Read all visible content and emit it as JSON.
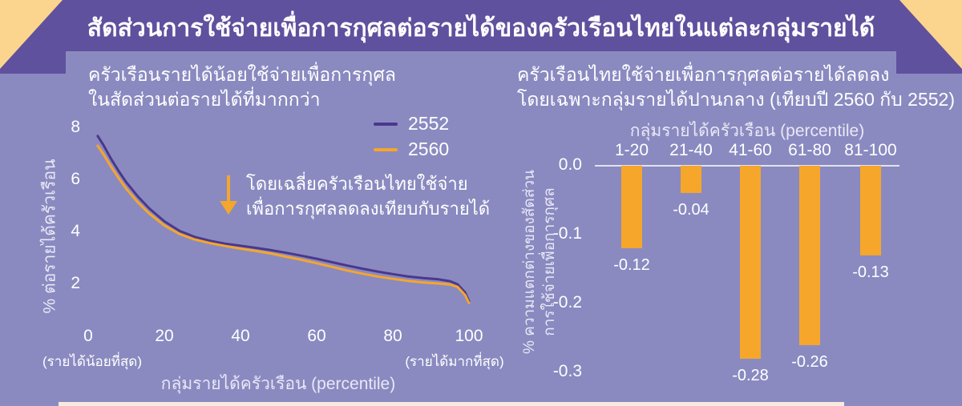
{
  "page": {
    "title": "สัดส่วนการใช้จ่ายเพื่อการกุศลต่อรายได้ของครัวเรือนไทยในแต่ละกลุ่มรายได้",
    "colors": {
      "background": "#8A8AC1",
      "header_band": "#5F519E",
      "corner_triangle": "#FBD58D",
      "accent_orange": "#F5A62B",
      "line_2552_purple": "#4A388C",
      "text_white": "#FFFFFF",
      "zero_line": "#E3E1EF",
      "footer_strip": "#F8EADF"
    }
  },
  "left_chart": {
    "subtitle_line1": "ครัวเรือนรายได้น้อยใช้จ่ายเพื่อการกุศล",
    "subtitle_line2": "ในสัดส่วนต่อรายได้ที่มากกว่า",
    "annotation_line1": "โดยเฉลี่ยครัวเรือนไทยใช้จ่าย",
    "annotation_line2": "เพื่อการกุศลลดลงเทียบกับรายได้",
    "x_min_note": "(รายได้น้อยที่สุด)",
    "x_max_note": "(รายได้มากที่สุด)"
  },
  "right_chart": {
    "subtitle_line1": "ครัวเรือนไทยใช้จ่ายเพื่อการกุศลต่อรายได้ลดลง",
    "subtitle_line2": "โดยเฉพาะกลุ่มรายได้ปานกลาง (เทียบปี 2560 กับ 2552)",
    "ylabel_line1": "% ความแตกต่างของสัดส่วน",
    "ylabel_line2": "การใช้จ่ายเพื่อการกุศล"
  },
  "chart_data": [
    {
      "type": "line",
      "title": "ครัวเรือนรายได้น้อยใช้จ่ายเพื่อการกุศลในสัดส่วนต่อรายได้ที่มากกว่า",
      "xlabel": "กลุ่มรายได้ครัวเรือน (percentile)",
      "ylabel": "% ต่อรายได้ครัวเรือน",
      "x_ticks": [
        0,
        20,
        40,
        60,
        80,
        100
      ],
      "y_ticks": [
        8,
        6,
        4,
        2
      ],
      "xlim": [
        0,
        105
      ],
      "ylim": [
        0,
        8.5
      ],
      "grid": false,
      "legend_position": "top-right",
      "x": [
        2.5,
        4,
        6,
        8,
        10,
        13,
        16,
        20,
        24,
        28,
        32,
        36,
        40,
        44,
        48,
        52,
        56,
        60,
        64,
        68,
        72,
        76,
        80,
        84,
        88,
        92,
        95,
        97,
        99,
        100
      ],
      "series": [
        {
          "name": "2552",
          "color": "#4A388C",
          "values": [
            7.7,
            7.35,
            6.82,
            6.35,
            5.92,
            5.38,
            4.92,
            4.42,
            4.05,
            3.82,
            3.67,
            3.56,
            3.48,
            3.4,
            3.31,
            3.21,
            3.1,
            2.98,
            2.85,
            2.72,
            2.6,
            2.49,
            2.39,
            2.3,
            2.24,
            2.19,
            2.12,
            2.0,
            1.68,
            1.35
          ]
        },
        {
          "name": "2560",
          "color": "#F5A62B",
          "values": [
            7.32,
            7.0,
            6.52,
            6.08,
            5.67,
            5.15,
            4.72,
            4.26,
            3.93,
            3.72,
            3.58,
            3.47,
            3.37,
            3.28,
            3.18,
            3.06,
            2.94,
            2.81,
            2.67,
            2.53,
            2.41,
            2.3,
            2.21,
            2.13,
            2.07,
            2.03,
            1.99,
            1.9,
            1.58,
            1.28
          ]
        }
      ]
    },
    {
      "type": "bar",
      "xlabel": "กลุ่มรายได้ครัวเรือน (percentile)",
      "ylabel": "% ความแตกต่างของสัดส่วนการใช้จ่ายเพื่อการกุศล",
      "categories": [
        "1-20",
        "21-40",
        "41-60",
        "61-80",
        "81-100"
      ],
      "values": [
        -0.12,
        -0.04,
        -0.28,
        -0.26,
        -0.13
      ],
      "value_labels": [
        "-0.12",
        "-0.04",
        "-0.28",
        "-0.26",
        "-0.13"
      ],
      "y_ticks": [
        0,
        -0.1,
        -0.2,
        -0.3
      ],
      "y_tick_labels": [
        "0.0",
        "-0.1",
        "-0.2",
        "-0.3"
      ],
      "ylim": [
        -0.3,
        0
      ],
      "bar_color": "#F5A62B",
      "grid": false
    }
  ]
}
